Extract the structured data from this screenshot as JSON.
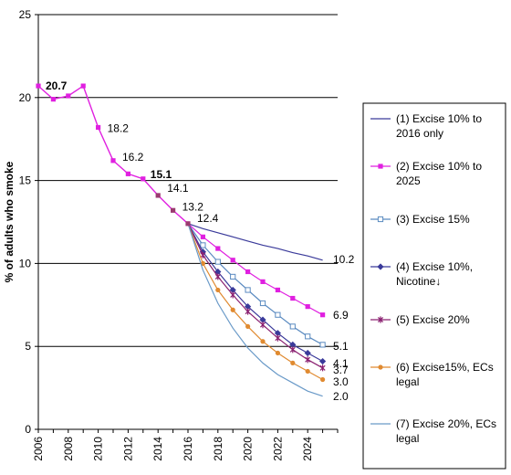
{
  "chart_data": {
    "type": "line",
    "title": "",
    "xlabel": "",
    "ylabel": "% of adults who smoke",
    "xlim": [
      2006,
      2026
    ],
    "ylim": [
      0,
      25
    ],
    "yticks": [
      0,
      5,
      10,
      15,
      20,
      25
    ],
    "xticks": [
      2006,
      2008,
      2010,
      2012,
      2014,
      2016,
      2018,
      2020,
      2022,
      2024
    ],
    "grid": "horizontal",
    "legend_position": "right",
    "historical": {
      "color": "#e020e0",
      "x": [
        2006,
        2007,
        2008,
        2009,
        2010,
        2011,
        2012,
        2013,
        2014,
        2015,
        2016
      ],
      "y": [
        20.7,
        19.9,
        20.1,
        20.7,
        18.2,
        16.2,
        15.4,
        15.1,
        14.1,
        13.2,
        12.4
      ]
    },
    "data_labels": [
      {
        "x": 2006,
        "y": 20.7,
        "text": "20.7",
        "bold": true
      },
      {
        "x": 2010,
        "y": 18.2,
        "text": "18.2",
        "bold": false
      },
      {
        "x": 2011,
        "y": 16.2,
        "text": "16.2",
        "bold": false
      },
      {
        "x": 2013,
        "y": 15.1,
        "text": "15.1",
        "bold": true
      },
      {
        "x": 2014,
        "y": 14.1,
        "text": "14.1",
        "bold": false
      },
      {
        "x": 2015,
        "y": 13.2,
        "text": "13.2",
        "bold": false
      },
      {
        "x": 2016,
        "y": 12.4,
        "text": "12.4",
        "bold": false
      }
    ],
    "end_labels": [
      "10.2",
      "6.9",
      "5.1",
      "4.1",
      "3.7",
      "3.0",
      "2.0"
    ],
    "series": [
      {
        "name": "(1) Excise 10% to 2016 only",
        "legend_lines": [
          "(1) Excise 10% to",
          "2016 only"
        ],
        "color": "#3a3a9a",
        "marker": "none",
        "x": [
          2016,
          2017,
          2018,
          2019,
          2020,
          2021,
          2022,
          2023,
          2024,
          2025
        ],
        "y": [
          12.4,
          12.1,
          11.85,
          11.6,
          11.35,
          11.1,
          10.9,
          10.65,
          10.45,
          10.2
        ]
      },
      {
        "name": "(2) Excise 10% to 2025",
        "legend_lines": [
          "(2) Excise 10% to",
          "2025"
        ],
        "color": "#e020e0",
        "marker": "square",
        "x": [
          2016,
          2017,
          2018,
          2019,
          2020,
          2021,
          2022,
          2023,
          2024,
          2025
        ],
        "y": [
          12.4,
          11.6,
          10.9,
          10.2,
          9.5,
          8.9,
          8.4,
          7.9,
          7.4,
          6.9
        ]
      },
      {
        "name": "(3) Excise 15%",
        "legend_lines": [
          "(3) Excise 15%"
        ],
        "color": "#5a8ac0",
        "marker": "square-open",
        "x": [
          2016,
          2017,
          2018,
          2019,
          2020,
          2021,
          2022,
          2023,
          2024,
          2025
        ],
        "y": [
          12.4,
          11.1,
          10.1,
          9.2,
          8.4,
          7.6,
          6.9,
          6.2,
          5.6,
          5.1
        ]
      },
      {
        "name": "(4) Excise 10%, Nicotine↓",
        "legend_lines": [
          "(4) Excise 10%,",
          "Nicotine↓"
        ],
        "color": "#3a3a9a",
        "marker": "diamond",
        "x": [
          2016,
          2017,
          2018,
          2019,
          2020,
          2021,
          2022,
          2023,
          2024,
          2025
        ],
        "y": [
          12.4,
          10.7,
          9.5,
          8.4,
          7.4,
          6.6,
          5.8,
          5.1,
          4.6,
          4.1
        ]
      },
      {
        "name": "(5) Excise 20%",
        "legend_lines": [
          "(5) Excise 20%"
        ],
        "color": "#8a2070",
        "marker": "star",
        "x": [
          2016,
          2017,
          2018,
          2019,
          2020,
          2021,
          2022,
          2023,
          2024,
          2025
        ],
        "y": [
          12.4,
          10.5,
          9.2,
          8.1,
          7.1,
          6.3,
          5.5,
          4.8,
          4.2,
          3.7
        ]
      },
      {
        "name": "(6) Excise15%, ECs legal",
        "legend_lines": [
          "(6) Excise15%, ECs",
          "legal"
        ],
        "color": "#e08a30",
        "marker": "circle",
        "x": [
          2016,
          2017,
          2018,
          2019,
          2020,
          2021,
          2022,
          2023,
          2024,
          2025
        ],
        "y": [
          12.4,
          10.0,
          8.4,
          7.2,
          6.2,
          5.3,
          4.6,
          4.0,
          3.5,
          3.0
        ]
      },
      {
        "name": "(7) Excise 20%, ECs legal",
        "legend_lines": [
          "(7) Excise 20%, ECs",
          "legal"
        ],
        "color": "#6a9ac8",
        "marker": "none",
        "x": [
          2016,
          2017,
          2018,
          2019,
          2020,
          2021,
          2022,
          2023,
          2024,
          2025
        ],
        "y": [
          12.4,
          9.6,
          7.6,
          6.1,
          4.9,
          4.0,
          3.3,
          2.8,
          2.3,
          2.0
        ]
      }
    ]
  }
}
